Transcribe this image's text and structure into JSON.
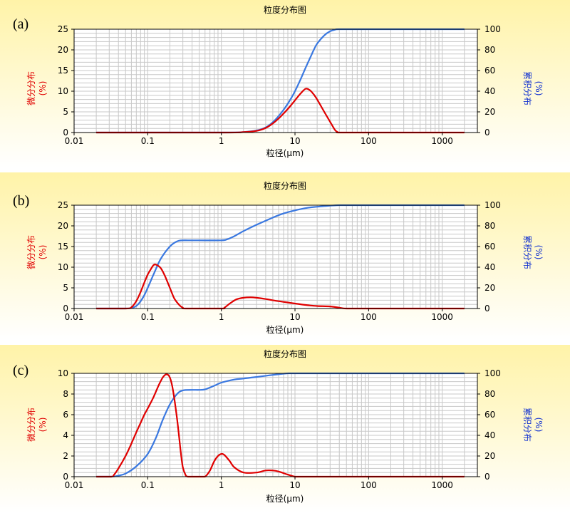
{
  "chart_data": [
    {
      "type": "line",
      "panel_label": "(a)",
      "title": "粒度分布图",
      "xlabel": "粒径(μm)",
      "ylabel_left_main": "微分分布",
      "ylabel_left_unit": "(%)",
      "ylabel_right_main": "累积分布",
      "ylabel_right_unit": "(%)",
      "x_scale": "log",
      "xlim": [
        0.01,
        3000
      ],
      "ylim_left": [
        0,
        25
      ],
      "ylim_right": [
        0,
        100
      ],
      "x_ticks": [
        0.01,
        0.1,
        1,
        10,
        100,
        1000
      ],
      "x_tick_labels": [
        "0.01",
        "0.1",
        "1",
        "10",
        "100",
        "1000"
      ],
      "y_left_ticks": [
        0,
        5,
        10,
        15,
        20,
        25
      ],
      "y_right_ticks": [
        0,
        20,
        40,
        60,
        80,
        100
      ],
      "grid": true,
      "series": [
        {
          "role": "differential",
          "axis": "left",
          "color": "#e00000",
          "x": [
            0.02,
            1,
            2,
            3,
            4,
            5,
            6,
            7,
            8,
            9,
            10,
            12,
            14,
            16,
            18,
            20,
            25,
            30,
            35,
            38,
            40,
            100,
            1000,
            2000
          ],
          "y": [
            0,
            0,
            0.1,
            0.4,
            1.1,
            2.2,
            3.4,
            4.6,
            5.7,
            6.8,
            7.8,
            9.5,
            10.6,
            10.2,
            9.2,
            8,
            5,
            2.6,
            0.6,
            0.1,
            0,
            0,
            0,
            0
          ]
        },
        {
          "role": "cumulative",
          "axis": "right",
          "color": "#3a78e0",
          "x": [
            0.02,
            1,
            2,
            3,
            4,
            5,
            6,
            7,
            8,
            9,
            10,
            12,
            14,
            16,
            18,
            20,
            25,
            30,
            35,
            40,
            100,
            1000,
            2000
          ],
          "y": [
            0,
            0,
            0.5,
            2,
            5,
            10,
            16,
            22,
            28,
            34,
            40,
            52,
            63,
            72,
            80,
            86,
            94,
            98,
            99.5,
            100,
            100,
            100,
            100
          ]
        }
      ]
    },
    {
      "type": "line",
      "panel_label": "(b)",
      "title": "粒度分布图",
      "xlabel": "粒径(μm)",
      "ylabel_left_main": "微分分布",
      "ylabel_left_unit": "(%)",
      "ylabel_right_main": "累积分布",
      "ylabel_right_unit": "(%)",
      "x_scale": "log",
      "xlim": [
        0.01,
        3000
      ],
      "ylim_left": [
        0,
        25
      ],
      "ylim_right": [
        0,
        100
      ],
      "x_ticks": [
        0.01,
        0.1,
        1,
        10,
        100,
        1000
      ],
      "x_tick_labels": [
        "0.01",
        "0.1",
        "1",
        "10",
        "100",
        "1000"
      ],
      "y_left_ticks": [
        0,
        5,
        10,
        15,
        20,
        25
      ],
      "y_right_ticks": [
        0,
        20,
        40,
        60,
        80,
        100
      ],
      "grid": true,
      "series": [
        {
          "role": "differential",
          "axis": "left",
          "color": "#e00000",
          "x": [
            0.02,
            0.05,
            0.06,
            0.07,
            0.08,
            0.09,
            0.1,
            0.11,
            0.12,
            0.13,
            0.15,
            0.17,
            0.2,
            0.23,
            0.27,
            0.3,
            0.33,
            1,
            1.1,
            1.3,
            1.6,
            2,
            2.5,
            3,
            4,
            5,
            7,
            10,
            15,
            20,
            30,
            40,
            50,
            100,
            1000,
            2000
          ],
          "y": [
            0,
            0,
            0.3,
            1.8,
            4,
            6.3,
            8.2,
            9.5,
            10.5,
            10.6,
            9.8,
            8,
            5,
            2.4,
            0.8,
            0.2,
            0,
            0,
            0.2,
            1.2,
            2.2,
            2.6,
            2.7,
            2.6,
            2.3,
            2,
            1.6,
            1.2,
            0.8,
            0.6,
            0.5,
            0.2,
            0,
            0,
            0,
            0
          ]
        },
        {
          "role": "cumulative",
          "axis": "right",
          "color": "#3a78e0",
          "x": [
            0.02,
            0.05,
            0.06,
            0.07,
            0.08,
            0.09,
            0.1,
            0.12,
            0.15,
            0.2,
            0.25,
            0.3,
            0.35,
            0.5,
            1,
            1.2,
            1.5,
            2,
            3,
            5,
            7,
            10,
            15,
            20,
            30,
            40,
            50,
            100,
            1000,
            2000
          ],
          "y": [
            0,
            0,
            0.5,
            2.5,
            7,
            13,
            20,
            33,
            48,
            60,
            65,
            66,
            66,
            66,
            66,
            67,
            70,
            75,
            81,
            88,
            92,
            95,
            97.5,
            98.5,
            99.5,
            100,
            100,
            100,
            100,
            100
          ]
        }
      ]
    },
    {
      "type": "line",
      "panel_label": "(c)",
      "title": "粒度分布图",
      "xlabel": "粒径(μm)",
      "ylabel_left_main": "微分分布",
      "ylabel_left_unit": "(%)",
      "ylabel_right_main": "累积分布",
      "ylabel_right_unit": "(%)",
      "x_scale": "log",
      "xlim": [
        0.01,
        3000
      ],
      "ylim_left": [
        0,
        10
      ],
      "ylim_right": [
        0,
        100
      ],
      "x_ticks": [
        0.01,
        0.1,
        1,
        10,
        100,
        1000
      ],
      "x_tick_labels": [
        "0.01",
        "0.1",
        "1",
        "10",
        "100",
        "1000"
      ],
      "y_left_ticks": [
        0,
        2,
        4,
        6,
        8,
        10
      ],
      "y_right_ticks": [
        0,
        20,
        40,
        60,
        80,
        100
      ],
      "grid": true,
      "series": [
        {
          "role": "differential",
          "axis": "left",
          "color": "#e00000",
          "x": [
            0.02,
            0.032,
            0.035,
            0.04,
            0.05,
            0.06,
            0.07,
            0.08,
            0.09,
            0.1,
            0.12,
            0.14,
            0.16,
            0.18,
            0.2,
            0.22,
            0.25,
            0.28,
            0.3,
            0.33,
            0.35,
            0.4,
            0.5,
            0.6,
            0.7,
            0.8,
            0.9,
            1,
            1.1,
            1.3,
            1.5,
            2,
            3,
            4,
            5,
            6,
            8,
            10,
            12,
            100,
            1000,
            2000
          ],
          "y": [
            0,
            0,
            0.2,
            0.8,
            2,
            3.2,
            4.3,
            5.2,
            6,
            6.6,
            7.7,
            8.8,
            9.6,
            9.9,
            9.6,
            8.4,
            5.6,
            2.5,
            0.9,
            0.1,
            0,
            0,
            0,
            0,
            0.6,
            1.5,
            2,
            2.2,
            2.1,
            1.5,
            0.9,
            0.4,
            0.4,
            0.6,
            0.6,
            0.5,
            0.2,
            0,
            0,
            0,
            0,
            0
          ]
        },
        {
          "role": "cumulative",
          "axis": "right",
          "color": "#3a78e0",
          "x": [
            0.02,
            0.032,
            0.04,
            0.05,
            0.07,
            0.1,
            0.13,
            0.16,
            0.2,
            0.25,
            0.3,
            0.4,
            0.5,
            0.6,
            0.8,
            1,
            1.5,
            2,
            3,
            5,
            8,
            10,
            100,
            1000,
            2000
          ],
          "y": [
            0,
            0,
            1,
            3,
            10,
            22,
            38,
            55,
            70,
            80,
            83.5,
            84,
            84,
            84.5,
            88,
            91,
            94,
            95,
            96.5,
            98.5,
            100,
            100,
            100,
            100,
            100
          ]
        }
      ]
    }
  ]
}
